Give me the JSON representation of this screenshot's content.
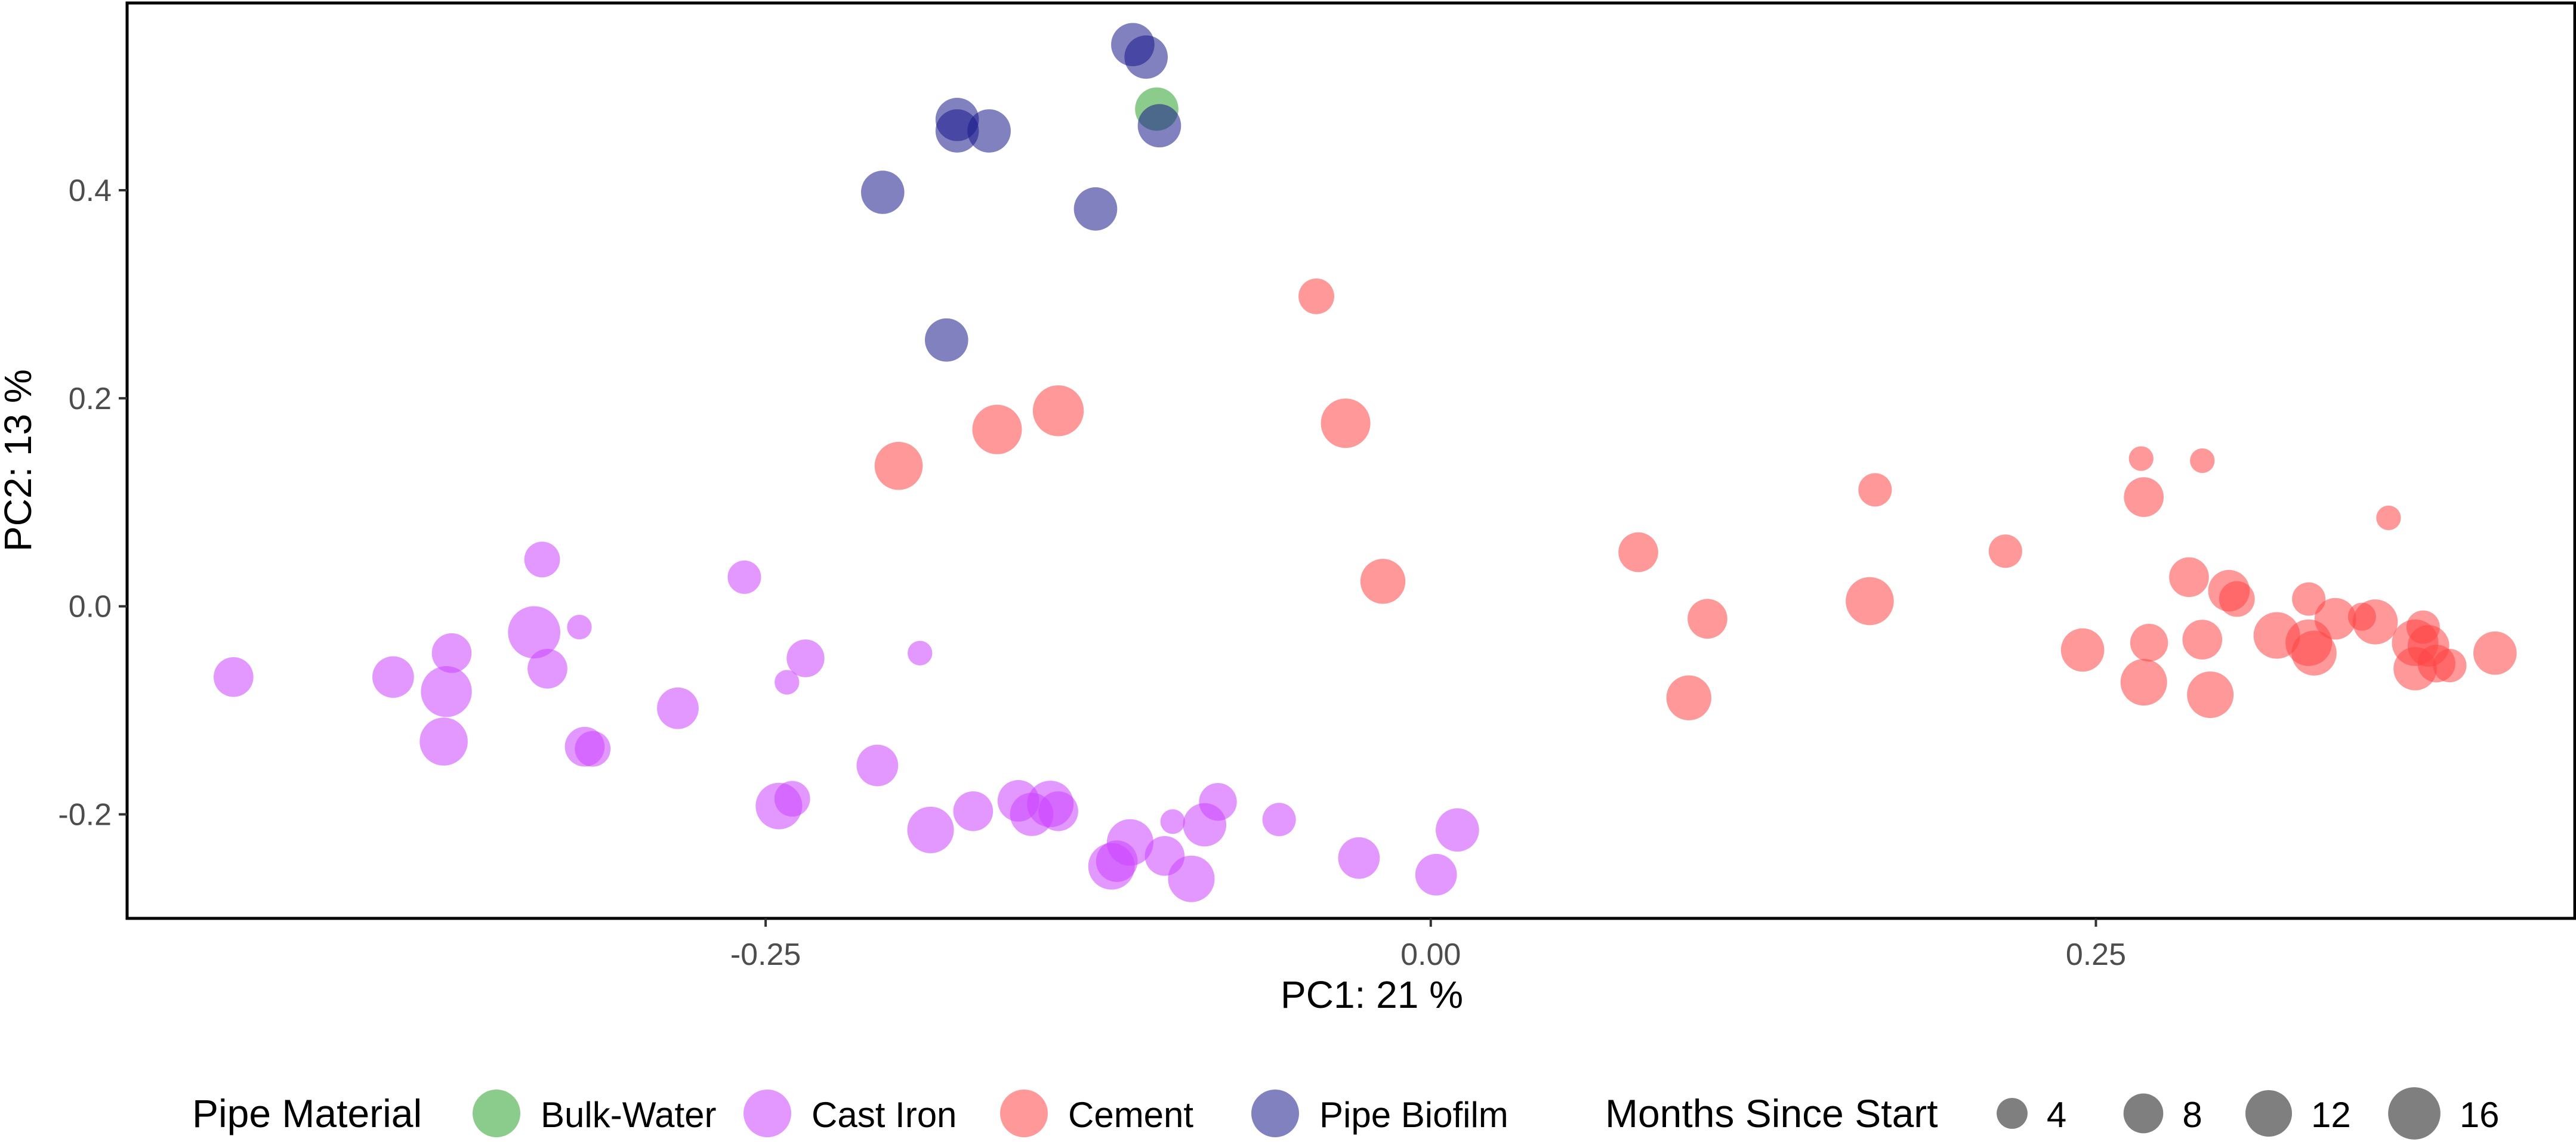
{
  "chart_data": {
    "type": "scatter",
    "title": "",
    "xlabel": "PC1:  21 %",
    "ylabel": "PC2:  13 %",
    "xlim": [
      -0.49,
      0.43
    ],
    "ylim": [
      -0.3,
      0.58
    ],
    "x_ticks": [
      -0.25,
      0.0,
      0.25
    ],
    "x_tick_labels": [
      "-0.25",
      "0.00",
      "0.25"
    ],
    "y_ticks": [
      -0.2,
      0.0,
      0.2,
      0.4
    ],
    "y_tick_labels": [
      "-0.2",
      "0.0",
      "0.2",
      "0.4"
    ],
    "grid": false,
    "legend": {
      "placement": "bottom",
      "color_title": "Pipe Material",
      "size_title": "Months Since Start",
      "size_levels": [
        4,
        8,
        12,
        16
      ],
      "size_labels": [
        "4",
        "8",
        "12",
        "16"
      ]
    },
    "size_range_months": [
      0,
      18
    ],
    "series": [
      {
        "name": "Bulk-Water",
        "color": "#2ca02c",
        "points": [
          {
            "x": -0.103,
            "y": 0.478,
            "months": 10
          }
        ]
      },
      {
        "name": "Cast Iron",
        "color": "#cc44ff",
        "points": [
          {
            "x": -0.45,
            "y": -0.068,
            "months": 8
          },
          {
            "x": -0.39,
            "y": -0.068,
            "months": 9
          },
          {
            "x": -0.37,
            "y": -0.082,
            "months": 15
          },
          {
            "x": -0.368,
            "y": -0.045,
            "months": 8
          },
          {
            "x": -0.371,
            "y": -0.13,
            "months": 13
          },
          {
            "x": -0.337,
            "y": -0.025,
            "months": 16
          },
          {
            "x": -0.334,
            "y": 0.045,
            "months": 6
          },
          {
            "x": -0.332,
            "y": -0.06,
            "months": 8
          },
          {
            "x": -0.32,
            "y": -0.02,
            "months": 2
          },
          {
            "x": -0.318,
            "y": -0.135,
            "months": 8
          },
          {
            "x": -0.315,
            "y": -0.137,
            "months": 6
          },
          {
            "x": -0.283,
            "y": -0.098,
            "months": 9
          },
          {
            "x": -0.258,
            "y": 0.028,
            "months": 5
          },
          {
            "x": -0.245,
            "y": -0.192,
            "months": 12
          },
          {
            "x": -0.242,
            "y": -0.073,
            "months": 2
          },
          {
            "x": -0.24,
            "y": -0.185,
            "months": 6
          },
          {
            "x": -0.235,
            "y": -0.05,
            "months": 7
          },
          {
            "x": -0.208,
            "y": -0.153,
            "months": 9
          },
          {
            "x": -0.192,
            "y": -0.045,
            "months": 2
          },
          {
            "x": -0.188,
            "y": -0.215,
            "months": 12
          },
          {
            "x": -0.172,
            "y": -0.197,
            "months": 8
          },
          {
            "x": -0.155,
            "y": -0.187,
            "months": 9
          },
          {
            "x": -0.15,
            "y": -0.2,
            "months": 10
          },
          {
            "x": -0.143,
            "y": -0.19,
            "months": 12
          },
          {
            "x": -0.14,
            "y": -0.197,
            "months": 8
          },
          {
            "x": -0.12,
            "y": -0.25,
            "months": 12
          },
          {
            "x": -0.118,
            "y": -0.245,
            "months": 9
          },
          {
            "x": -0.113,
            "y": -0.227,
            "months": 12
          },
          {
            "x": -0.1,
            "y": -0.24,
            "months": 8
          },
          {
            "x": -0.097,
            "y": -0.207,
            "months": 2
          },
          {
            "x": -0.09,
            "y": -0.262,
            "months": 12
          },
          {
            "x": -0.085,
            "y": -0.21,
            "months": 10
          },
          {
            "x": -0.08,
            "y": -0.188,
            "months": 7
          },
          {
            "x": -0.057,
            "y": -0.205,
            "months": 5
          },
          {
            "x": -0.027,
            "y": -0.242,
            "months": 9
          },
          {
            "x": 0.002,
            "y": -0.258,
            "months": 9
          },
          {
            "x": 0.01,
            "y": -0.215,
            "months": 10
          }
        ]
      },
      {
        "name": "Cement",
        "color": "#ff4444",
        "points": [
          {
            "x": -0.2,
            "y": 0.135,
            "months": 13
          },
          {
            "x": -0.163,
            "y": 0.17,
            "months": 14
          },
          {
            "x": -0.14,
            "y": 0.188,
            "months": 15
          },
          {
            "x": -0.043,
            "y": 0.298,
            "months": 6
          },
          {
            "x": -0.032,
            "y": 0.176,
            "months": 14
          },
          {
            "x": -0.018,
            "y": 0.024,
            "months": 11
          },
          {
            "x": 0.078,
            "y": 0.052,
            "months": 8
          },
          {
            "x": 0.097,
            "y": -0.088,
            "months": 11
          },
          {
            "x": 0.104,
            "y": -0.012,
            "months": 8
          },
          {
            "x": 0.165,
            "y": 0.005,
            "months": 13
          },
          {
            "x": 0.167,
            "y": 0.112,
            "months": 5
          },
          {
            "x": 0.216,
            "y": 0.053,
            "months": 5
          },
          {
            "x": 0.245,
            "y": -0.042,
            "months": 10
          },
          {
            "x": 0.267,
            "y": 0.142,
            "months": 2
          },
          {
            "x": 0.268,
            "y": -0.073,
            "months": 12
          },
          {
            "x": 0.268,
            "y": 0.105,
            "months": 8
          },
          {
            "x": 0.27,
            "y": -0.035,
            "months": 7
          },
          {
            "x": 0.285,
            "y": 0.028,
            "months": 8
          },
          {
            "x": 0.29,
            "y": 0.14,
            "months": 2
          },
          {
            "x": 0.29,
            "y": -0.032,
            "months": 8
          },
          {
            "x": 0.293,
            "y": -0.085,
            "months": 12
          },
          {
            "x": 0.3,
            "y": 0.015,
            "months": 9
          },
          {
            "x": 0.303,
            "y": 0.007,
            "months": 6
          },
          {
            "x": 0.318,
            "y": -0.028,
            "months": 12
          },
          {
            "x": 0.33,
            "y": 0.007,
            "months": 5
          },
          {
            "x": 0.33,
            "y": -0.035,
            "months": 12
          },
          {
            "x": 0.332,
            "y": -0.045,
            "months": 11
          },
          {
            "x": 0.34,
            "y": -0.012,
            "months": 9
          },
          {
            "x": 0.35,
            "y": -0.01,
            "months": 3
          },
          {
            "x": 0.355,
            "y": -0.015,
            "months": 11
          },
          {
            "x": 0.36,
            "y": 0.085,
            "months": 2
          },
          {
            "x": 0.37,
            "y": -0.035,
            "months": 12
          },
          {
            "x": 0.37,
            "y": -0.06,
            "months": 10
          },
          {
            "x": 0.373,
            "y": -0.02,
            "months": 5
          },
          {
            "x": 0.375,
            "y": -0.038,
            "months": 9
          },
          {
            "x": 0.378,
            "y": -0.055,
            "months": 7
          },
          {
            "x": 0.383,
            "y": -0.057,
            "months": 5
          },
          {
            "x": 0.4,
            "y": -0.045,
            "months": 10
          }
        ]
      },
      {
        "name": "Pipe Biofilm",
        "color": "#1a1a8c",
        "points": [
          {
            "x": -0.112,
            "y": 0.54,
            "months": 10
          },
          {
            "x": -0.107,
            "y": 0.528,
            "months": 10
          },
          {
            "x": -0.102,
            "y": 0.462,
            "months": 10
          },
          {
            "x": -0.178,
            "y": 0.468,
            "months": 10
          },
          {
            "x": -0.178,
            "y": 0.457,
            "months": 10
          },
          {
            "x": -0.166,
            "y": 0.457,
            "months": 10
          },
          {
            "x": -0.206,
            "y": 0.398,
            "months": 10
          },
          {
            "x": -0.126,
            "y": 0.382,
            "months": 10
          },
          {
            "x": -0.182,
            "y": 0.256,
            "months": 10
          }
        ]
      }
    ]
  }
}
